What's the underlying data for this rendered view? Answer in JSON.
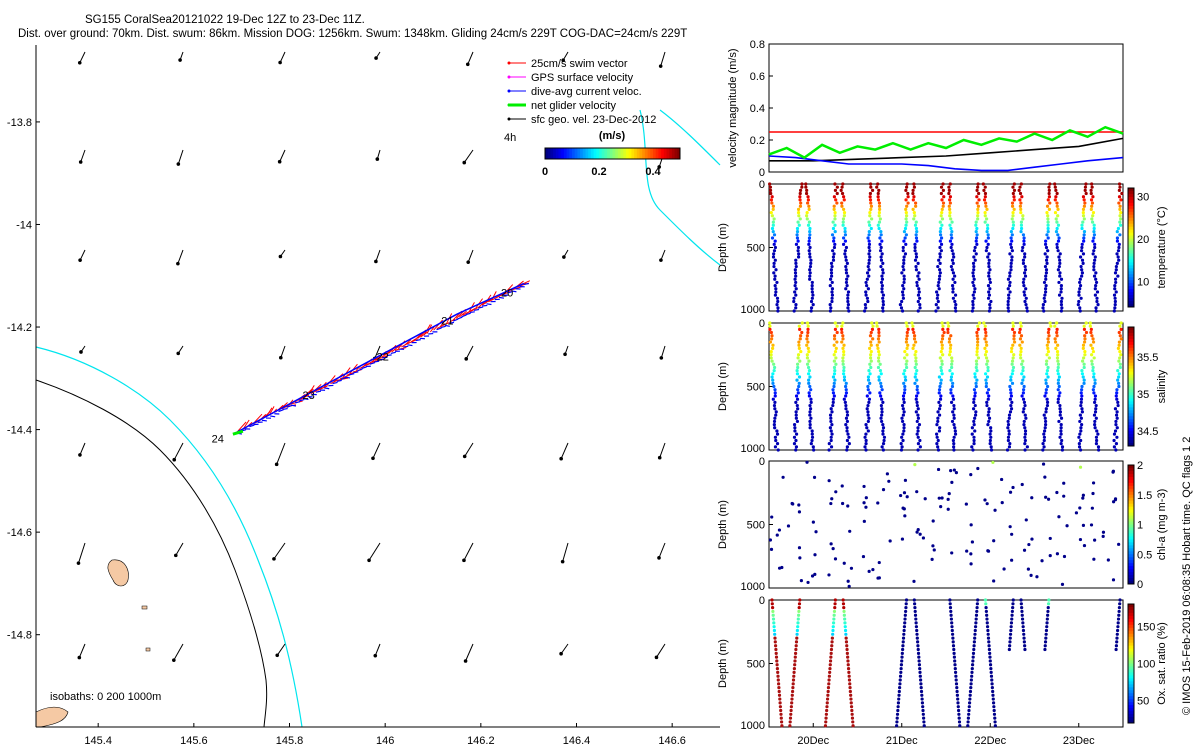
{
  "header": {
    "line1": "SG155 CoralSea20121022 19-Dec 12Z to 23-Dec 11Z.",
    "line2": "Dist. over ground: 70km. Dist. swum: 86km. Mission DOG: 1256km. Swum: 1348km. Gliding 24cm/s 229T COG-DAC=24cm/s 229T"
  },
  "footer_credit": "© IMOS 15-Feb-2019 06:08:35 Hobart time. QC flags 1 2",
  "colors": {
    "swim": "#ff0000",
    "gps": "#ff00ff",
    "dac": "#0000ff",
    "net": "#00ee00",
    "geo": "#000000",
    "coast": "#00e5ee",
    "isobath": "#000000",
    "land": "#f5c9a4"
  },
  "map": {
    "legend": [
      {
        "label": "25cm/s swim vector",
        "color": "#ff0000",
        "lw": 1
      },
      {
        "label": "GPS surface velocity",
        "color": "#ff00ff",
        "lw": 1
      },
      {
        "label": "dive-avg current veloc.",
        "color": "#0000ff",
        "lw": 1
      },
      {
        "label": "net glider velocity",
        "color": "#00ee00",
        "lw": 3
      },
      {
        "label": "sfc geo. vel. 23-Dec-2012",
        "color": "#000000",
        "lw": 1
      }
    ],
    "legend_extra": "4h",
    "colorbar": {
      "title": "(m/s)",
      "ticks": [
        0,
        0.2,
        0.4
      ],
      "range": [
        0,
        0.5
      ]
    },
    "isobaths_label": "isobaths: 0   200  1000m",
    "xlim": [
      145.27,
      146.7
    ],
    "ylim": [
      -14.98,
      -13.65
    ],
    "xticks": [
      145.4,
      145.6,
      145.8,
      146,
      146.2,
      146.4,
      146.6
    ],
    "yticks": [
      -13.8,
      -14,
      -14.2,
      -14.4,
      -14.6,
      -14.8
    ],
    "track": [
      [
        145.69,
        -14.405
      ],
      [
        145.85,
        -14.325
      ],
      [
        146.0,
        -14.25
      ],
      [
        146.15,
        -14.175
      ],
      [
        146.29,
        -14.115
      ]
    ],
    "day_labels": [
      {
        "text": "20",
        "lon": 146.255,
        "lat": -14.14
      },
      {
        "text": "21",
        "lon": 146.13,
        "lat": -14.195
      },
      {
        "text": "22",
        "lon": 145.995,
        "lat": -14.265
      },
      {
        "text": "23",
        "lon": 145.84,
        "lat": -14.34
      },
      {
        "text": "24",
        "lon": 145.65,
        "lat": -14.425
      }
    ]
  },
  "chart_data": [
    {
      "type": "line",
      "ylabel": "velocity magnitude (m/s)",
      "ylim": [
        0,
        0.8
      ],
      "yticks": [
        0,
        0.2,
        0.4,
        0.6,
        0.8
      ],
      "xlim": [
        19.5,
        23.5
      ],
      "series": [
        {
          "name": "swim",
          "color": "#ff0000",
          "x": [
            19.5,
            22.0,
            23.5
          ],
          "y": [
            0.25,
            0.25,
            0.25
          ]
        },
        {
          "name": "geo",
          "color": "#000000",
          "x": [
            19.5,
            20.0,
            20.5,
            21.0,
            21.5,
            22.0,
            22.5,
            23.0,
            23.5
          ],
          "y": [
            0.07,
            0.07,
            0.08,
            0.09,
            0.1,
            0.12,
            0.14,
            0.16,
            0.21
          ]
        },
        {
          "name": "dac",
          "color": "#0000ff",
          "x": [
            19.5,
            19.8,
            20.1,
            20.4,
            20.7,
            21.0,
            21.3,
            21.6,
            21.9,
            22.2,
            22.5,
            22.8,
            23.1,
            23.5
          ],
          "y": [
            0.1,
            0.09,
            0.07,
            0.05,
            0.05,
            0.05,
            0.04,
            0.02,
            0.01,
            0.01,
            0.03,
            0.05,
            0.07,
            0.09
          ]
        },
        {
          "name": "net",
          "color": "#00ee00",
          "x": [
            19.5,
            19.7,
            19.9,
            20.1,
            20.3,
            20.5,
            20.7,
            20.9,
            21.1,
            21.3,
            21.5,
            21.7,
            21.9,
            22.1,
            22.3,
            22.5,
            22.7,
            22.9,
            23.1,
            23.3,
            23.5
          ],
          "y": [
            0.11,
            0.15,
            0.09,
            0.17,
            0.12,
            0.16,
            0.14,
            0.18,
            0.14,
            0.18,
            0.15,
            0.2,
            0.17,
            0.21,
            0.19,
            0.24,
            0.2,
            0.26,
            0.22,
            0.28,
            0.24
          ]
        }
      ]
    },
    {
      "type": "scatter",
      "ylabel": "Depth (m)",
      "cblabel": "temperature (°C)",
      "ylim": [
        1000,
        0
      ],
      "yticks": [
        0,
        500,
        1000
      ],
      "cbticks": [
        10,
        20,
        30
      ],
      "cbrange": [
        4,
        32
      ],
      "surface_value": 30,
      "deep_value": 5,
      "profiles": 20,
      "max_depth": 1000
    },
    {
      "type": "scatter",
      "ylabel": "Depth (m)",
      "cblabel": "salinity",
      "ylim": [
        1000,
        0
      ],
      "yticks": [
        0,
        500,
        1000
      ],
      "cbticks": [
        34.5,
        35,
        35.5
      ],
      "cbrange": [
        34.3,
        35.9
      ],
      "surface_value": 35.4,
      "deep_value": 34.4,
      "profiles": 20,
      "max_depth": 1000
    },
    {
      "type": "scatter",
      "ylabel": "Depth (m)",
      "cblabel": "chl-a (mg m-3)",
      "ylim": [
        1000,
        0
      ],
      "yticks": [
        0,
        500,
        1000
      ],
      "cbticks": [
        0,
        0.5,
        1,
        1.5,
        2
      ],
      "cbrange": [
        0,
        2
      ],
      "surface_value": 0.05,
      "deep_value": 0.02,
      "profiles": 20,
      "max_depth": 1000
    },
    {
      "type": "scatter",
      "ylabel": "Depth (m)",
      "cblabel": "Ox. sat. ratio (%)",
      "ylim": [
        1000,
        0
      ],
      "yticks": [
        0,
        500,
        1000
      ],
      "cbticks": [
        50,
        100,
        150
      ],
      "cbrange": [
        20,
        180
      ],
      "xticks": [
        "20Dec",
        "21Dec",
        "22Dec",
        "23Dec"
      ],
      "xtick_days": [
        20,
        21,
        22,
        23
      ],
      "xlim": [
        19.5,
        23.5
      ]
    }
  ]
}
